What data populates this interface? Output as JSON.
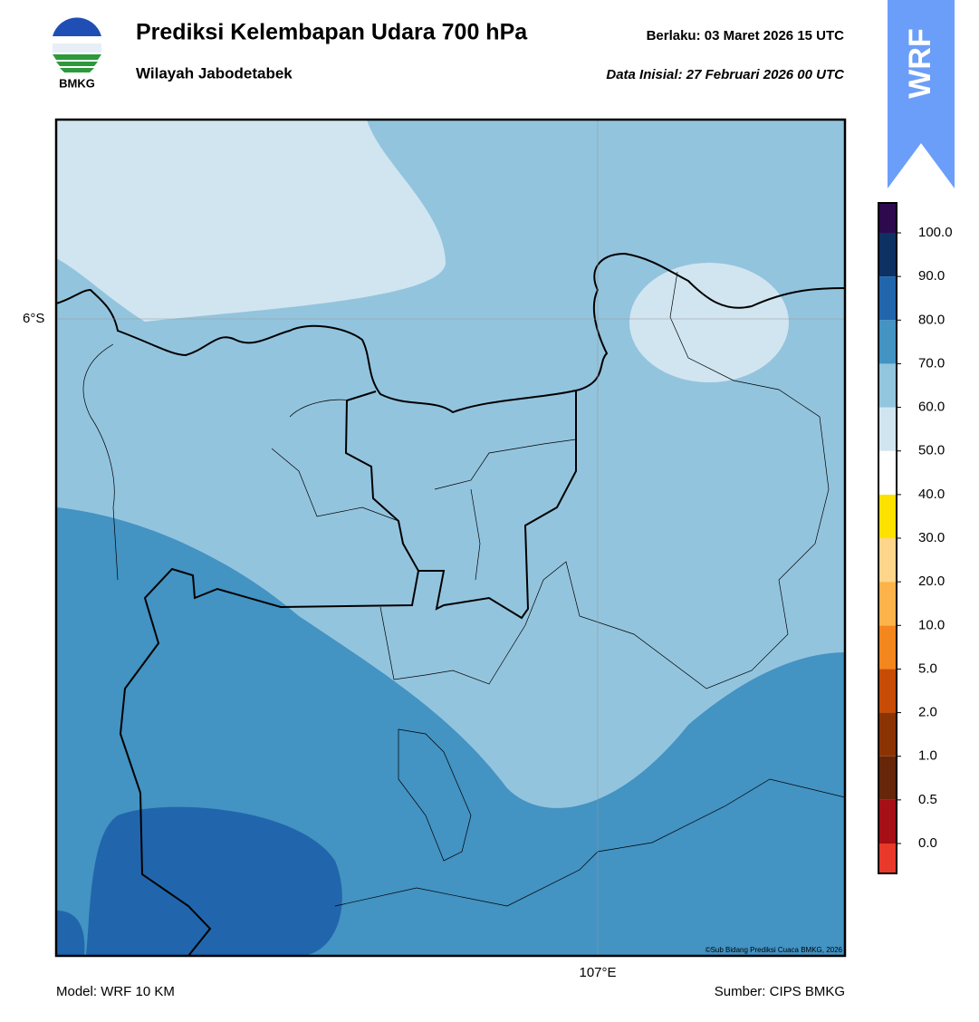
{
  "header": {
    "logo_text": "BMKG",
    "title": "Prediksi Kelembapan Udara 700 hPa",
    "subtitle": "Wilayah Jabodetabek",
    "valid": "Berlaku:  03 Maret 2026 15 UTC",
    "init": "Data Inisial:  27 Februari 2026 00 UTC"
  },
  "banner": "WRF",
  "map": {
    "lat_label": "6°S",
    "lon_label": "107°E",
    "credit": "©Sub Bidang Prediksi Cuaca BMKG, 2026"
  },
  "colorbar": {
    "labels": [
      "0.0",
      "0.5",
      "1.0",
      "2.0",
      "5.0",
      "10.0",
      "20.0",
      "30.0",
      "40.0",
      "50.0",
      "60.0",
      "70.0",
      "80.0",
      "90.0",
      "100.0"
    ],
    "colors": [
      "#e8392b",
      "#a50f15",
      "#67260a",
      "#8c3304",
      "#c84c05",
      "#f4861e",
      "#fdb34a",
      "#fed58a",
      "#ffe100",
      "#ffffff",
      "#d1e5f0",
      "#92c5de",
      "#4393c3",
      "#2166ac",
      "#0d3163",
      "#2d0a4e"
    ]
  },
  "footer": {
    "model": "Model: WRF 10 KM",
    "source": "Sumber: CIPS BMKG"
  }
}
